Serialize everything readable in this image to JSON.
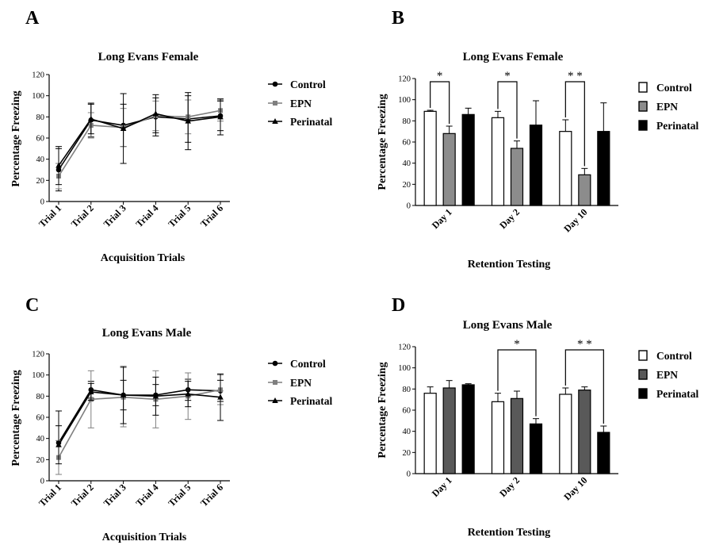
{
  "chart_data": [
    {
      "id": "A",
      "panel": "A",
      "type": "line",
      "title": "Long Evans Female",
      "xlabel": "Acquisition Trials",
      "ylabel": "Percentage Freezing",
      "ylim": [
        0,
        120
      ],
      "yticks": [
        0,
        20,
        40,
        60,
        80,
        100,
        120
      ],
      "categories": [
        "Trial 1",
        "Trial 2",
        "Trial 3",
        "Trial 4",
        "Trial 5",
        "Trial 6"
      ],
      "legend": "right",
      "series": [
        {
          "name": "Control",
          "color": "#000000",
          "marker": "circle",
          "values": [
            30,
            77,
            72,
            80,
            78,
            81
          ],
          "err": [
            20,
            16,
            20,
            18,
            22,
            14
          ]
        },
        {
          "name": "EPN",
          "color": "#7f7f7f",
          "marker": "square",
          "values": [
            24,
            72,
            70,
            81,
            80,
            86
          ],
          "err": [
            12,
            12,
            18,
            14,
            16,
            10
          ]
        },
        {
          "name": "Perinatal",
          "color": "#000000",
          "marker": "triangle",
          "values": [
            34,
            78,
            69,
            83,
            76,
            80
          ],
          "err": [
            18,
            14,
            33,
            18,
            27,
            17
          ]
        }
      ]
    },
    {
      "id": "B",
      "panel": "B",
      "type": "bar",
      "title": "Long Evans Female",
      "xlabel": "Retention Testing",
      "ylabel": "Percentage Freezing",
      "ylim": [
        0,
        120
      ],
      "yticks": [
        0,
        20,
        40,
        60,
        80,
        100,
        120
      ],
      "categories": [
        "Day 1",
        "Day 2",
        "Day 10"
      ],
      "legend": "right",
      "series": [
        {
          "name": "Control",
          "fill": "#ffffff",
          "values": [
            89,
            83,
            70
          ],
          "err": [
            1,
            6,
            11
          ]
        },
        {
          "name": "EPN",
          "fill": "#8c8c8c",
          "values": [
            68,
            54,
            29
          ],
          "err": [
            7,
            7,
            6
          ]
        },
        {
          "name": "Perinatal",
          "fill": "#000000",
          "values": [
            86,
            76,
            70
          ],
          "err": [
            6,
            23,
            27
          ]
        }
      ],
      "significance": [
        {
          "category": 0,
          "from": 0,
          "to": 1,
          "label": "*",
          "height": 117
        },
        {
          "category": 1,
          "from": 0,
          "to": 1,
          "label": "*",
          "height": 117
        },
        {
          "category": 2,
          "from": 0,
          "to": 1,
          "label": "* *",
          "height": 117
        }
      ]
    },
    {
      "id": "C",
      "panel": "C",
      "type": "line",
      "title": "Long Evans  Male",
      "xlabel": "Acquisition Trials",
      "ylabel": "Percentage Freezing",
      "ylim": [
        0,
        120
      ],
      "yticks": [
        0,
        20,
        40,
        60,
        80,
        100,
        120
      ],
      "categories": [
        "Trial 1",
        "Trial 2",
        "Trial 3",
        "Trial 4",
        "Trial 5",
        "Trial 6"
      ],
      "legend": "right",
      "series": [
        {
          "name": "Control",
          "color": "#000000",
          "marker": "circle",
          "values": [
            36,
            86,
            81,
            81,
            86,
            85
          ],
          "err": [
            30,
            8,
            14,
            10,
            10,
            10
          ]
        },
        {
          "name": "EPN",
          "color": "#7f7f7f",
          "marker": "square",
          "values": [
            22,
            77,
            79,
            77,
            80,
            86
          ],
          "err": [
            16,
            27,
            28,
            27,
            22,
            14
          ]
        },
        {
          "name": "Perinatal",
          "color": "#000000",
          "marker": "triangle",
          "values": [
            34,
            84,
            81,
            80,
            82,
            79
          ],
          "err": [
            18,
            8,
            27,
            18,
            12,
            22
          ]
        }
      ]
    },
    {
      "id": "D",
      "panel": "D",
      "type": "bar",
      "title": "Long Evans Male",
      "xlabel": "Retention Testing",
      "ylabel": "Percentage Freezing",
      "ylim": [
        0,
        120
      ],
      "yticks": [
        0,
        20,
        40,
        60,
        80,
        100,
        120
      ],
      "categories": [
        "Day 1",
        "Day 2",
        "Day 10"
      ],
      "legend": "right",
      "series": [
        {
          "name": "Control",
          "fill": "#ffffff",
          "values": [
            76,
            68,
            75
          ],
          "err": [
            6,
            8,
            6
          ]
        },
        {
          "name": "EPN",
          "fill": "#595959",
          "values": [
            81,
            71,
            79
          ],
          "err": [
            7,
            7,
            3
          ]
        },
        {
          "name": "Perinatal",
          "fill": "#000000",
          "values": [
            84,
            47,
            39
          ],
          "err": [
            1,
            5,
            6
          ]
        }
      ],
      "significance": [
        {
          "category": 1,
          "from": 0,
          "to": 2,
          "label": "*",
          "height": 117
        },
        {
          "category": 2,
          "from": 0,
          "to": 2,
          "label": "* *",
          "height": 117
        }
      ]
    }
  ]
}
